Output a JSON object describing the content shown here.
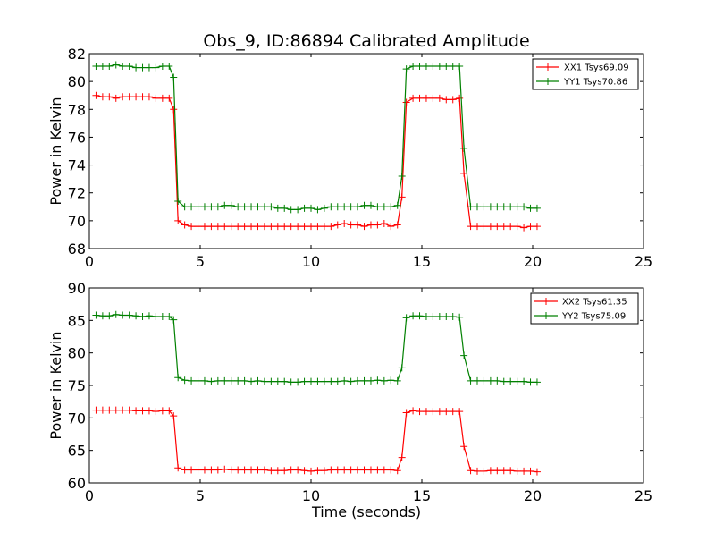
{
  "figure": {
    "title": "Obs_9, ID:86894 Calibrated Amplitude"
  },
  "chart_data": [
    {
      "type": "line",
      "title": "Obs_9, ID:86894 Calibrated Amplitude",
      "xlabel": "",
      "ylabel": "Power in Kelvin",
      "xlim": [
        0,
        25
      ],
      "ylim": [
        68,
        82
      ],
      "xticks": [
        0,
        5,
        10,
        15,
        20,
        25
      ],
      "yticks": [
        68,
        70,
        72,
        74,
        76,
        78,
        80,
        82
      ],
      "grid": false,
      "legend_position": "top-right",
      "x": [
        0.3,
        0.6,
        0.9,
        1.2,
        1.5,
        1.8,
        2.1,
        2.4,
        2.7,
        3.0,
        3.3,
        3.6,
        3.8,
        4.0,
        4.3,
        4.6,
        4.9,
        5.2,
        5.5,
        5.8,
        6.1,
        6.4,
        6.7,
        7.0,
        7.3,
        7.6,
        7.9,
        8.2,
        8.5,
        8.8,
        9.1,
        9.4,
        9.7,
        10.0,
        10.3,
        10.6,
        10.9,
        11.2,
        11.5,
        11.8,
        12.1,
        12.4,
        12.7,
        13.0,
        13.3,
        13.6,
        13.9,
        14.1,
        14.3,
        14.6,
        14.9,
        15.2,
        15.5,
        15.8,
        16.1,
        16.4,
        16.7,
        16.9,
        17.2,
        17.5,
        17.8,
        18.1,
        18.4,
        18.7,
        19.0,
        19.3,
        19.6,
        19.9,
        20.2
      ],
      "series": [
        {
          "name": "XX1 Tsys69.09",
          "color": "#ff0000",
          "values": [
            79.0,
            78.9,
            78.9,
            78.8,
            78.9,
            78.9,
            78.9,
            78.9,
            78.9,
            78.8,
            78.8,
            78.8,
            78.0,
            70.0,
            69.7,
            69.6,
            69.6,
            69.6,
            69.6,
            69.6,
            69.6,
            69.6,
            69.6,
            69.6,
            69.6,
            69.6,
            69.6,
            69.6,
            69.6,
            69.6,
            69.6,
            69.6,
            69.6,
            69.6,
            69.6,
            69.6,
            69.6,
            69.7,
            69.8,
            69.7,
            69.7,
            69.6,
            69.7,
            69.7,
            69.8,
            69.6,
            69.7,
            71.7,
            78.5,
            78.8,
            78.8,
            78.8,
            78.8,
            78.8,
            78.7,
            78.7,
            78.8,
            73.4,
            69.6,
            69.6,
            69.6,
            69.6,
            69.6,
            69.6,
            69.6,
            69.6,
            69.5,
            69.6,
            69.6
          ]
        },
        {
          "name": "YY1 Tsys70.86",
          "color": "#008000",
          "values": [
            81.1,
            81.1,
            81.1,
            81.2,
            81.1,
            81.1,
            81.0,
            81.0,
            81.0,
            81.0,
            81.1,
            81.1,
            80.3,
            71.4,
            71.0,
            71.0,
            71.0,
            71.0,
            71.0,
            71.0,
            71.1,
            71.1,
            71.0,
            71.0,
            71.0,
            71.0,
            71.0,
            71.0,
            70.9,
            70.9,
            70.8,
            70.8,
            70.9,
            70.9,
            70.8,
            70.9,
            71.0,
            71.0,
            71.0,
            71.0,
            71.0,
            71.1,
            71.1,
            71.0,
            71.0,
            71.0,
            71.1,
            73.2,
            80.9,
            81.1,
            81.1,
            81.1,
            81.1,
            81.1,
            81.1,
            81.1,
            81.1,
            75.2,
            71.0,
            71.0,
            71.0,
            71.0,
            71.0,
            71.0,
            71.0,
            71.0,
            71.0,
            70.9,
            70.9
          ]
        }
      ]
    },
    {
      "type": "line",
      "title": "",
      "xlabel": "Time (seconds)",
      "ylabel": "Power in Kelvin",
      "xlim": [
        0,
        25
      ],
      "ylim": [
        60,
        90
      ],
      "xticks": [
        0,
        5,
        10,
        15,
        20,
        25
      ],
      "yticks": [
        60,
        65,
        70,
        75,
        80,
        85,
        90
      ],
      "grid": false,
      "legend_position": "top-right",
      "x": [
        0.3,
        0.6,
        0.9,
        1.2,
        1.5,
        1.8,
        2.1,
        2.4,
        2.7,
        3.0,
        3.3,
        3.6,
        3.8,
        4.0,
        4.3,
        4.6,
        4.9,
        5.2,
        5.5,
        5.8,
        6.1,
        6.4,
        6.7,
        7.0,
        7.3,
        7.6,
        7.9,
        8.2,
        8.5,
        8.8,
        9.1,
        9.4,
        9.7,
        10.0,
        10.3,
        10.6,
        10.9,
        11.2,
        11.5,
        11.8,
        12.1,
        12.4,
        12.7,
        13.0,
        13.3,
        13.6,
        13.9,
        14.1,
        14.3,
        14.6,
        14.9,
        15.2,
        15.5,
        15.8,
        16.1,
        16.4,
        16.7,
        16.9,
        17.2,
        17.5,
        17.8,
        18.1,
        18.4,
        18.7,
        19.0,
        19.3,
        19.6,
        19.9,
        20.2
      ],
      "series": [
        {
          "name": "XX2 Tsys61.35",
          "color": "#ff0000",
          "values": [
            71.2,
            71.2,
            71.2,
            71.2,
            71.2,
            71.2,
            71.1,
            71.1,
            71.1,
            71.0,
            71.1,
            71.1,
            70.3,
            62.3,
            62.0,
            62.0,
            62.0,
            62.0,
            62.0,
            62.0,
            62.1,
            62.0,
            62.0,
            62.0,
            62.0,
            62.0,
            62.0,
            61.9,
            61.9,
            61.9,
            62.0,
            62.0,
            61.9,
            61.8,
            61.9,
            61.9,
            62.0,
            62.0,
            62.0,
            62.0,
            62.0,
            62.0,
            62.0,
            62.0,
            62.0,
            62.0,
            61.9,
            63.9,
            70.8,
            71.1,
            71.0,
            71.0,
            71.0,
            71.0,
            71.0,
            71.0,
            71.0,
            65.6,
            61.9,
            61.8,
            61.8,
            61.9,
            61.9,
            61.9,
            61.9,
            61.8,
            61.8,
            61.8,
            61.7
          ]
        },
        {
          "name": "YY2 Tsys75.09",
          "color": "#008000",
          "values": [
            85.8,
            85.7,
            85.7,
            85.9,
            85.8,
            85.8,
            85.7,
            85.6,
            85.7,
            85.6,
            85.6,
            85.6,
            85.1,
            76.2,
            75.8,
            75.7,
            75.7,
            75.7,
            75.6,
            75.7,
            75.7,
            75.7,
            75.7,
            75.7,
            75.6,
            75.7,
            75.6,
            75.6,
            75.6,
            75.6,
            75.5,
            75.5,
            75.6,
            75.6,
            75.6,
            75.6,
            75.6,
            75.6,
            75.7,
            75.6,
            75.7,
            75.7,
            75.7,
            75.8,
            75.7,
            75.8,
            75.7,
            77.7,
            85.4,
            85.7,
            85.7,
            85.6,
            85.6,
            85.6,
            85.6,
            85.6,
            85.5,
            79.6,
            75.7,
            75.7,
            75.7,
            75.7,
            75.7,
            75.6,
            75.6,
            75.6,
            75.6,
            75.5,
            75.5
          ]
        }
      ]
    }
  ]
}
